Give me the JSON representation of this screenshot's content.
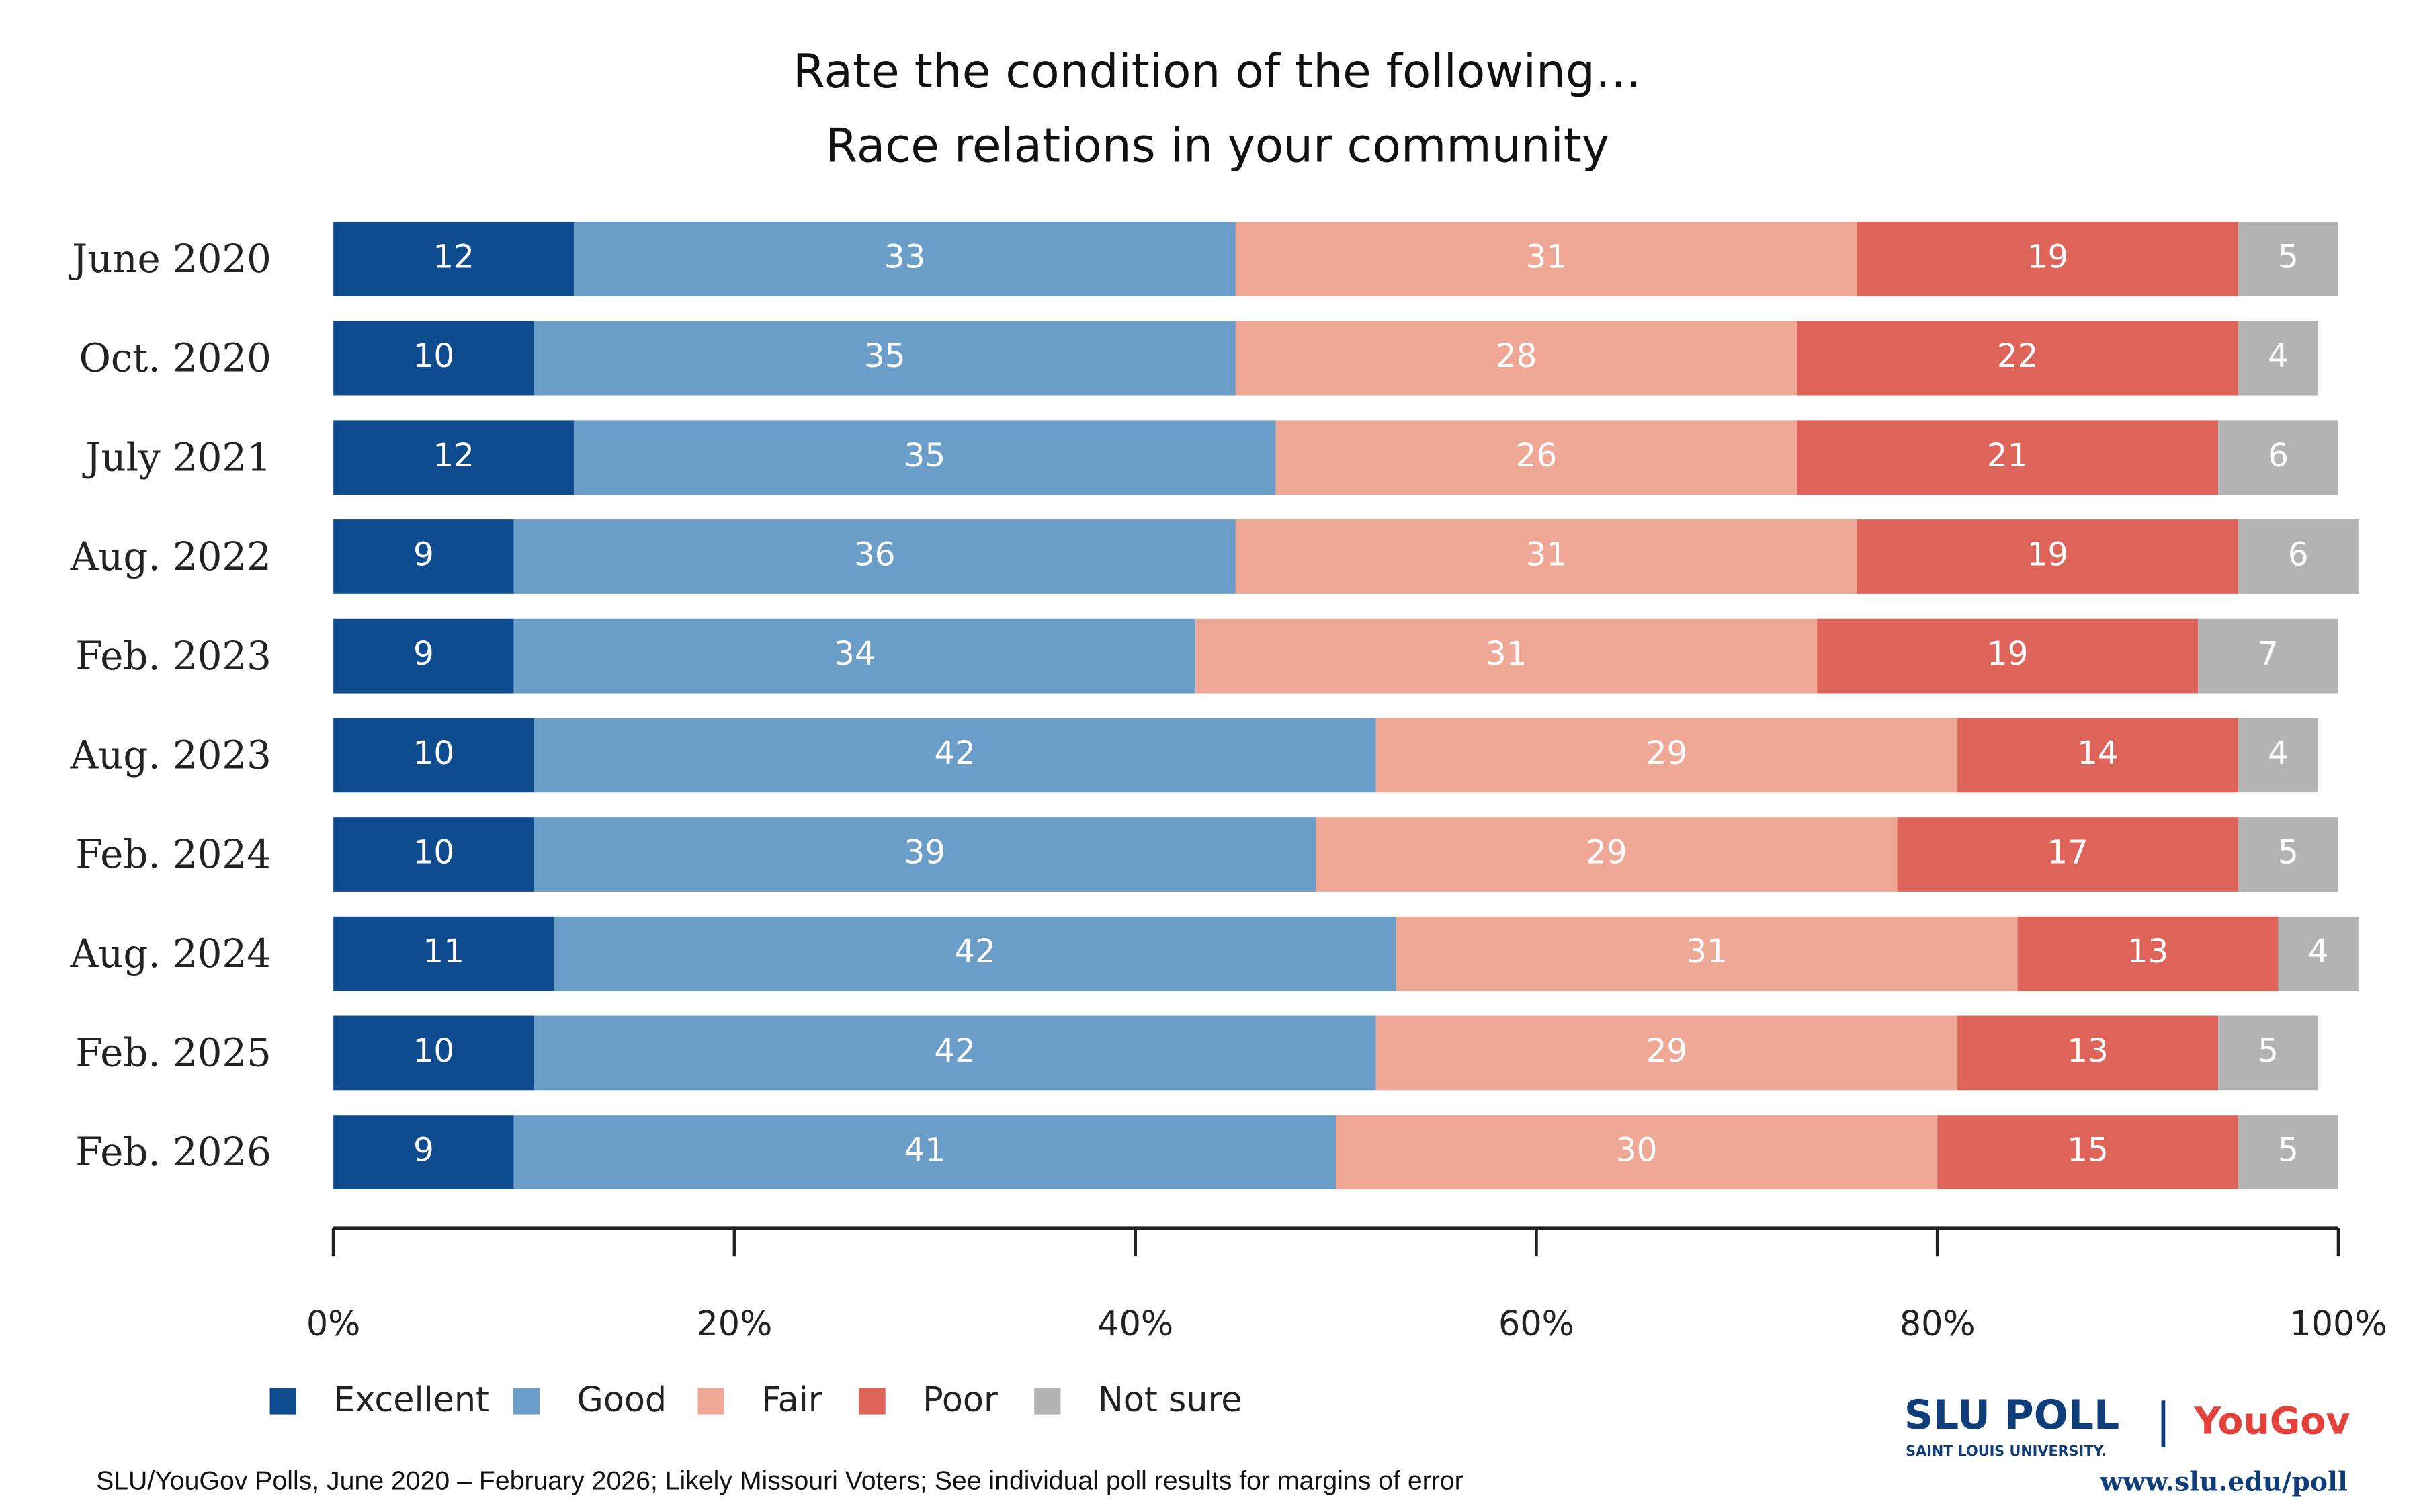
{
  "chart_data": {
    "type": "stacked-bar",
    "orientation": "horizontal",
    "title": "Rate the condition of the following…",
    "subtitle": "Race relations in your community",
    "categories": [
      "June 2020",
      "Oct. 2020",
      "July 2021",
      "Aug. 2022",
      "Feb. 2023",
      "Aug. 2023",
      "Feb. 2024",
      "Aug. 2024",
      "Feb. 2025",
      "Feb. 2026"
    ],
    "series": [
      {
        "name": "Excellent",
        "color": "#0f4c8f",
        "values": [
          12,
          10,
          12,
          9,
          9,
          10,
          10,
          11,
          10,
          9
        ]
      },
      {
        "name": "Good",
        "color": "#6a9ec8",
        "values": [
          33,
          35,
          35,
          36,
          34,
          42,
          39,
          42,
          42,
          41
        ]
      },
      {
        "name": "Fair",
        "color": "#efa895",
        "values": [
          31,
          28,
          26,
          31,
          31,
          29,
          29,
          31,
          29,
          30
        ]
      },
      {
        "name": "Poor",
        "color": "#de6459",
        "values": [
          19,
          22,
          21,
          19,
          19,
          14,
          17,
          13,
          13,
          15
        ]
      },
      {
        "name": "Not sure",
        "color": "#b3b3b3",
        "values": [
          5,
          4,
          6,
          6,
          7,
          4,
          5,
          4,
          5,
          5
        ]
      }
    ],
    "xlim": [
      0,
      100
    ],
    "xticks": [
      {
        "value": 0,
        "label": "0%"
      },
      {
        "value": 20,
        "label": "20%"
      },
      {
        "value": 40,
        "label": "40%"
      },
      {
        "value": 60,
        "label": "60%"
      },
      {
        "value": 80,
        "label": "80%"
      },
      {
        "value": 100,
        "label": "100%"
      }
    ],
    "legend": "bottom-left",
    "source": "SLU/YouGov Polls, June 2020 – February 2026; Likely Missouri Voters; See individual poll results for margins of error"
  },
  "branding": {
    "slu": "SLU POLL",
    "slu_sub": "SAINT LOUIS UNIVERSITY.",
    "separator": "|",
    "yougov": "YouGov",
    "url": "www.slu.edu/poll"
  }
}
